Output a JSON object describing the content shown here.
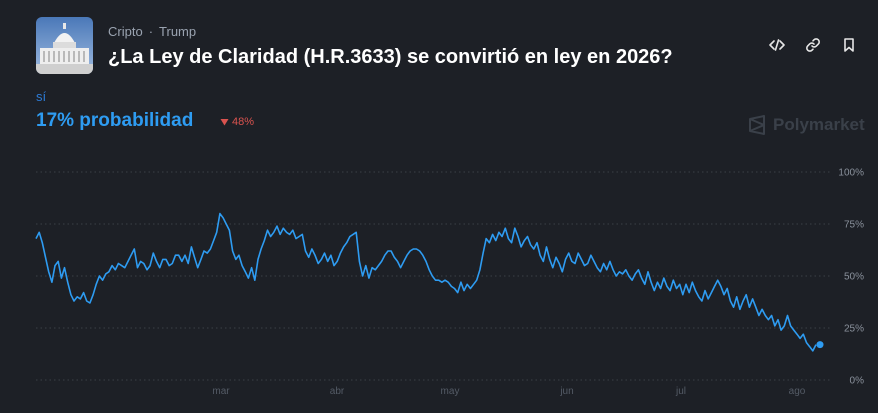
{
  "header": {
    "breadcrumb": [
      "Cripto",
      "Trump"
    ],
    "breadcrumb_separator": "·",
    "title": "¿La Ley de Claridad (H.R.3633) se convirtió en ley en 2026?",
    "thumbnail_icon": "capitol-building-icon"
  },
  "actions": [
    {
      "icon": "embed-code-icon"
    },
    {
      "icon": "link-icon"
    },
    {
      "icon": "bookmark-icon"
    }
  ],
  "outcome": {
    "label": "sí",
    "probability_text": "17% probabilidad",
    "change_text": "48%",
    "change_direction": "down"
  },
  "brand": {
    "name": "Polymarket"
  },
  "colors": {
    "background": "#1d2026",
    "line": "#2e9cf2",
    "outcome_label": "#2d7bd6",
    "change_down": "#d9534f",
    "grid": "#3a3f47"
  },
  "chart_data": {
    "type": "line",
    "x_tick_labels": [
      "mar",
      "abr",
      "may",
      "jun",
      "jul",
      "ago"
    ],
    "y_tick_labels": [
      "100%",
      "75%",
      "50%",
      "25%",
      "0%"
    ],
    "y_ticks": [
      100,
      75,
      50,
      25,
      0
    ],
    "ylim": [
      0,
      100
    ],
    "grid": true,
    "series": [
      {
        "values": [
          68,
          71,
          66,
          59,
          52,
          47,
          55,
          57,
          49,
          54,
          47,
          41,
          38,
          40,
          39,
          42,
          38,
          37,
          41,
          46,
          50,
          48,
          51,
          52,
          55,
          53,
          56,
          55,
          54,
          57,
          60,
          63,
          54,
          57,
          56,
          53,
          55,
          61,
          57,
          54,
          58,
          58,
          55,
          56,
          60,
          60,
          57,
          60,
          56,
          64,
          59,
          54,
          58,
          62,
          61,
          63,
          67,
          71,
          80,
          78,
          75,
          72,
          62,
          58,
          60,
          55,
          52,
          49,
          54,
          48,
          58,
          63,
          67,
          72,
          69,
          71,
          74,
          70,
          73,
          71,
          70,
          72,
          68,
          69,
          70,
          62,
          59,
          63,
          60,
          56,
          58,
          61,
          57,
          60,
          55,
          57,
          61,
          64,
          66,
          69,
          70,
          71,
          57,
          50,
          55,
          49,
          54,
          53,
          55,
          57,
          60,
          62,
          62,
          59,
          57,
          54,
          57,
          60,
          62,
          63,
          63,
          62,
          60,
          57,
          53,
          50,
          48,
          48,
          47,
          48,
          47,
          45,
          44,
          42,
          47,
          43,
          46,
          44,
          46,
          48,
          53,
          61,
          68,
          66,
          70,
          67,
          71,
          69,
          73,
          68,
          66,
          73,
          69,
          64,
          67,
          69,
          65,
          63,
          66,
          60,
          57,
          64,
          58,
          54,
          59,
          56,
          52,
          58,
          61,
          57,
          56,
          61,
          58,
          55,
          56,
          60,
          57,
          54,
          52,
          56,
          53,
          57,
          53,
          50,
          52,
          51,
          53,
          50,
          48,
          51,
          53,
          49,
          46,
          52,
          47,
          43,
          47,
          44,
          49,
          45,
          43,
          48,
          44,
          46,
          41,
          46,
          42,
          47,
          43,
          40,
          38,
          43,
          39,
          42,
          45,
          48,
          45,
          41,
          44,
          38,
          35,
          40,
          34,
          38,
          41,
          35,
          39,
          35,
          31,
          34,
          31,
          29,
          31,
          26,
          29,
          24,
          26,
          31,
          26,
          24,
          22,
          20,
          22,
          18,
          16,
          14,
          17
        ]
      }
    ],
    "current_value": 17
  }
}
